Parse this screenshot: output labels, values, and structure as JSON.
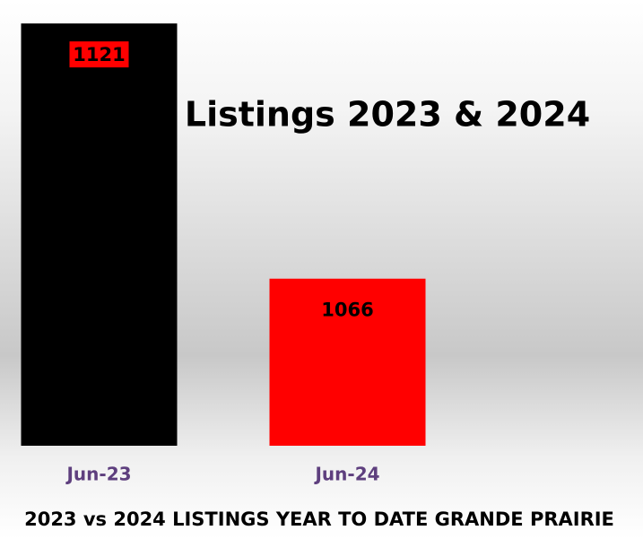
{
  "chart_data": {
    "type": "bar",
    "title": "Listings 2023 & 2024",
    "x_label": "2023 vs 2024 LISTINGS YEAR TO DATE GRANDE PRAIRIE",
    "categories": [
      "Jun-23",
      "Jun-24"
    ],
    "values": [
      1121,
      1066
    ],
    "colors": [
      "#000000",
      "#ff0000"
    ],
    "ylim": [
      1030,
      1122
    ]
  }
}
